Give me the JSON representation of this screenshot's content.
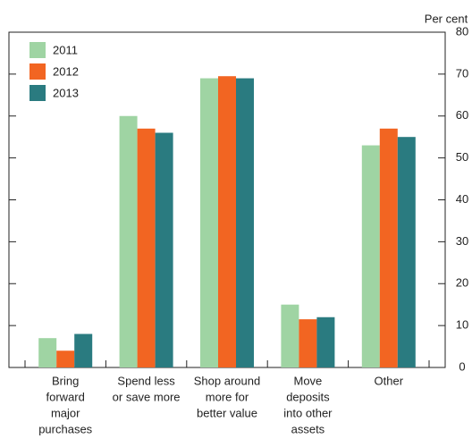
{
  "chart_data": {
    "type": "bar",
    "y_unit_label": "Per cent",
    "categories": [
      [
        "Bring",
        "forward",
        "major",
        "purchases"
      ],
      [
        "Spend less",
        "or save more"
      ],
      [
        "Shop around",
        "more for",
        "better value"
      ],
      [
        "Move",
        "deposits",
        "into other",
        "assets"
      ],
      [
        "Other"
      ]
    ],
    "series": [
      {
        "name": "2011",
        "color": "#9fd4a3",
        "values": [
          7,
          60,
          69,
          15,
          53
        ]
      },
      {
        "name": "2012",
        "color": "#f26522",
        "values": [
          4,
          57,
          69.5,
          11.5,
          57
        ]
      },
      {
        "name": "2013",
        "color": "#2a7b80",
        "values": [
          8,
          56,
          69,
          12,
          55
        ]
      }
    ],
    "ylim": [
      0,
      80
    ],
    "yticks": [
      0,
      10,
      20,
      30,
      40,
      50,
      60,
      70,
      80
    ],
    "legend": "top-left"
  }
}
